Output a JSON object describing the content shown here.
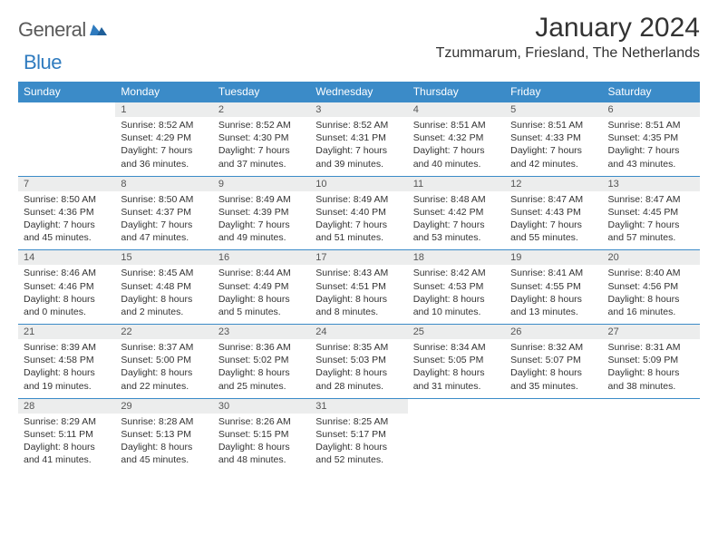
{
  "logo": {
    "part1": "General",
    "part2": "Blue"
  },
  "header": {
    "month_title": "January 2024",
    "location": "Tzummarum, Friesland, The Netherlands"
  },
  "colors": {
    "header_bg": "#3b8bc8",
    "header_text": "#ffffff",
    "daynum_bg": "#eceded",
    "row_border": "#3b8bc8",
    "logo_gray": "#5a5a5a",
    "logo_blue": "#2f7bbf"
  },
  "day_headers": [
    "Sunday",
    "Monday",
    "Tuesday",
    "Wednesday",
    "Thursday",
    "Friday",
    "Saturday"
  ],
  "weeks": [
    {
      "nums": [
        "",
        "1",
        "2",
        "3",
        "4",
        "5",
        "6"
      ],
      "info": [
        "",
        "Sunrise: 8:52 AM\nSunset: 4:29 PM\nDaylight: 7 hours and 36 minutes.",
        "Sunrise: 8:52 AM\nSunset: 4:30 PM\nDaylight: 7 hours and 37 minutes.",
        "Sunrise: 8:52 AM\nSunset: 4:31 PM\nDaylight: 7 hours and 39 minutes.",
        "Sunrise: 8:51 AM\nSunset: 4:32 PM\nDaylight: 7 hours and 40 minutes.",
        "Sunrise: 8:51 AM\nSunset: 4:33 PM\nDaylight: 7 hours and 42 minutes.",
        "Sunrise: 8:51 AM\nSunset: 4:35 PM\nDaylight: 7 hours and 43 minutes."
      ]
    },
    {
      "nums": [
        "7",
        "8",
        "9",
        "10",
        "11",
        "12",
        "13"
      ],
      "info": [
        "Sunrise: 8:50 AM\nSunset: 4:36 PM\nDaylight: 7 hours and 45 minutes.",
        "Sunrise: 8:50 AM\nSunset: 4:37 PM\nDaylight: 7 hours and 47 minutes.",
        "Sunrise: 8:49 AM\nSunset: 4:39 PM\nDaylight: 7 hours and 49 minutes.",
        "Sunrise: 8:49 AM\nSunset: 4:40 PM\nDaylight: 7 hours and 51 minutes.",
        "Sunrise: 8:48 AM\nSunset: 4:42 PM\nDaylight: 7 hours and 53 minutes.",
        "Sunrise: 8:47 AM\nSunset: 4:43 PM\nDaylight: 7 hours and 55 minutes.",
        "Sunrise: 8:47 AM\nSunset: 4:45 PM\nDaylight: 7 hours and 57 minutes."
      ]
    },
    {
      "nums": [
        "14",
        "15",
        "16",
        "17",
        "18",
        "19",
        "20"
      ],
      "info": [
        "Sunrise: 8:46 AM\nSunset: 4:46 PM\nDaylight: 8 hours and 0 minutes.",
        "Sunrise: 8:45 AM\nSunset: 4:48 PM\nDaylight: 8 hours and 2 minutes.",
        "Sunrise: 8:44 AM\nSunset: 4:49 PM\nDaylight: 8 hours and 5 minutes.",
        "Sunrise: 8:43 AM\nSunset: 4:51 PM\nDaylight: 8 hours and 8 minutes.",
        "Sunrise: 8:42 AM\nSunset: 4:53 PM\nDaylight: 8 hours and 10 minutes.",
        "Sunrise: 8:41 AM\nSunset: 4:55 PM\nDaylight: 8 hours and 13 minutes.",
        "Sunrise: 8:40 AM\nSunset: 4:56 PM\nDaylight: 8 hours and 16 minutes."
      ]
    },
    {
      "nums": [
        "21",
        "22",
        "23",
        "24",
        "25",
        "26",
        "27"
      ],
      "info": [
        "Sunrise: 8:39 AM\nSunset: 4:58 PM\nDaylight: 8 hours and 19 minutes.",
        "Sunrise: 8:37 AM\nSunset: 5:00 PM\nDaylight: 8 hours and 22 minutes.",
        "Sunrise: 8:36 AM\nSunset: 5:02 PM\nDaylight: 8 hours and 25 minutes.",
        "Sunrise: 8:35 AM\nSunset: 5:03 PM\nDaylight: 8 hours and 28 minutes.",
        "Sunrise: 8:34 AM\nSunset: 5:05 PM\nDaylight: 8 hours and 31 minutes.",
        "Sunrise: 8:32 AM\nSunset: 5:07 PM\nDaylight: 8 hours and 35 minutes.",
        "Sunrise: 8:31 AM\nSunset: 5:09 PM\nDaylight: 8 hours and 38 minutes."
      ]
    },
    {
      "nums": [
        "28",
        "29",
        "30",
        "31",
        "",
        "",
        ""
      ],
      "info": [
        "Sunrise: 8:29 AM\nSunset: 5:11 PM\nDaylight: 8 hours and 41 minutes.",
        "Sunrise: 8:28 AM\nSunset: 5:13 PM\nDaylight: 8 hours and 45 minutes.",
        "Sunrise: 8:26 AM\nSunset: 5:15 PM\nDaylight: 8 hours and 48 minutes.",
        "Sunrise: 8:25 AM\nSunset: 5:17 PM\nDaylight: 8 hours and 52 minutes.",
        "",
        "",
        ""
      ]
    }
  ]
}
